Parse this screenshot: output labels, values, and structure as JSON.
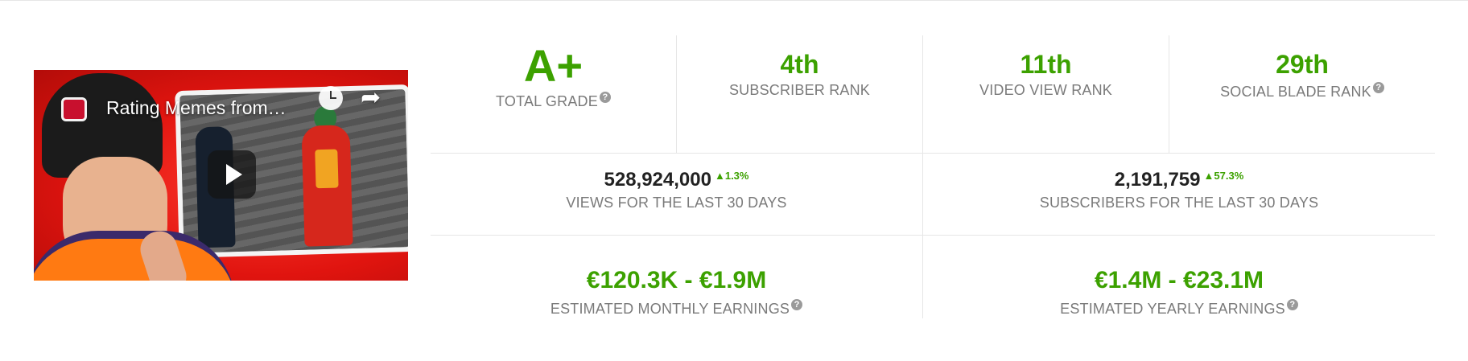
{
  "video": {
    "title": "Rating Memes from…",
    "icons": [
      "clock-icon",
      "share-icon",
      "play-icon"
    ]
  },
  "ranks": [
    {
      "value": "A+",
      "label": "TOTAL GRADE",
      "help": true
    },
    {
      "value": "4th",
      "label": "SUBSCRIBER RANK",
      "help": false
    },
    {
      "value": "11th",
      "label": "VIDEO VIEW RANK",
      "help": false
    },
    {
      "value": "29th",
      "label": "SOCIAL BLADE RANK",
      "help": true
    }
  ],
  "thirty_day": [
    {
      "value": "528,924,000",
      "delta": "1.3%",
      "label": "VIEWS FOR THE LAST 30 DAYS"
    },
    {
      "value": "2,191,759",
      "delta": "57.3%",
      "label": "SUBSCRIBERS FOR THE LAST 30 DAYS"
    }
  ],
  "earnings": [
    {
      "value": "€120.3K - €1.9M",
      "label": "ESTIMATED MONTHLY EARNINGS"
    },
    {
      "value": "€1.4M - €23.1M",
      "label": "ESTIMATED YEARLY EARNINGS"
    }
  ],
  "help_symbol": "?",
  "delta_arrow": "▲",
  "colors": {
    "accent_green": "#3ca100",
    "label_gray": "#7a7a7a",
    "divider": "#e6e6e6",
    "thumb_red": "#e0140f"
  }
}
